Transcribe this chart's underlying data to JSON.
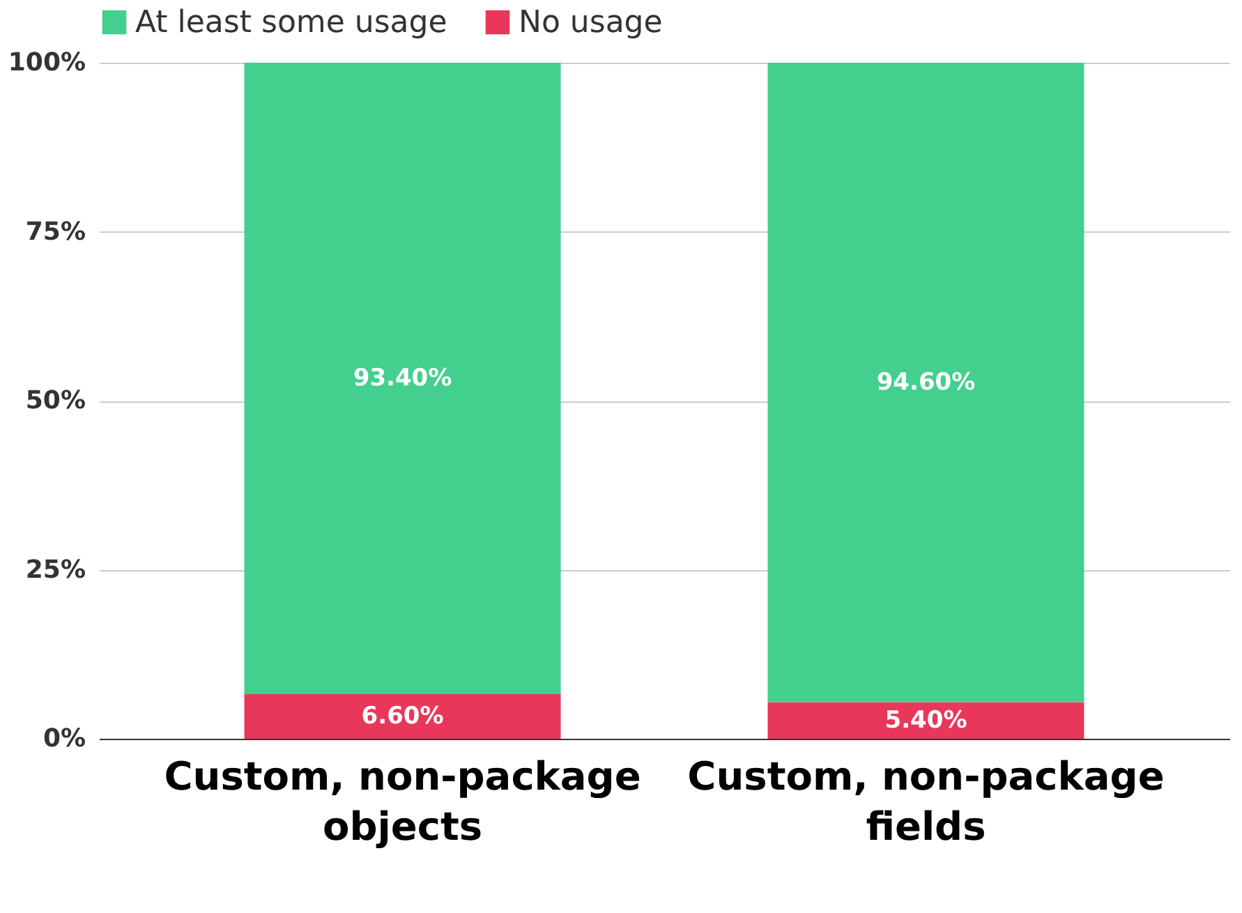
{
  "chart_data": {
    "type": "bar",
    "stacked": true,
    "categories": [
      "Custom, non-package\nobjects",
      "Custom, non-package\nfields"
    ],
    "series": [
      {
        "name": "No usage",
        "color": "#e8375a",
        "values": [
          6.6,
          5.4
        ],
        "value_labels": [
          "6.60%",
          "5.40%"
        ]
      },
      {
        "name": "At least some usage",
        "color": "#43cf8e",
        "values": [
          93.4,
          94.6
        ],
        "value_labels": [
          "93.40%",
          "94.60%"
        ]
      }
    ],
    "ylim": [
      0,
      100
    ],
    "yticks": [
      {
        "value": 0,
        "label": "0%"
      },
      {
        "value": 25,
        "label": "25%"
      },
      {
        "value": 50,
        "label": "50%"
      },
      {
        "value": 75,
        "label": "75%"
      },
      {
        "value": 100,
        "label": "100%"
      }
    ],
    "grid": "y",
    "legend": "top"
  }
}
